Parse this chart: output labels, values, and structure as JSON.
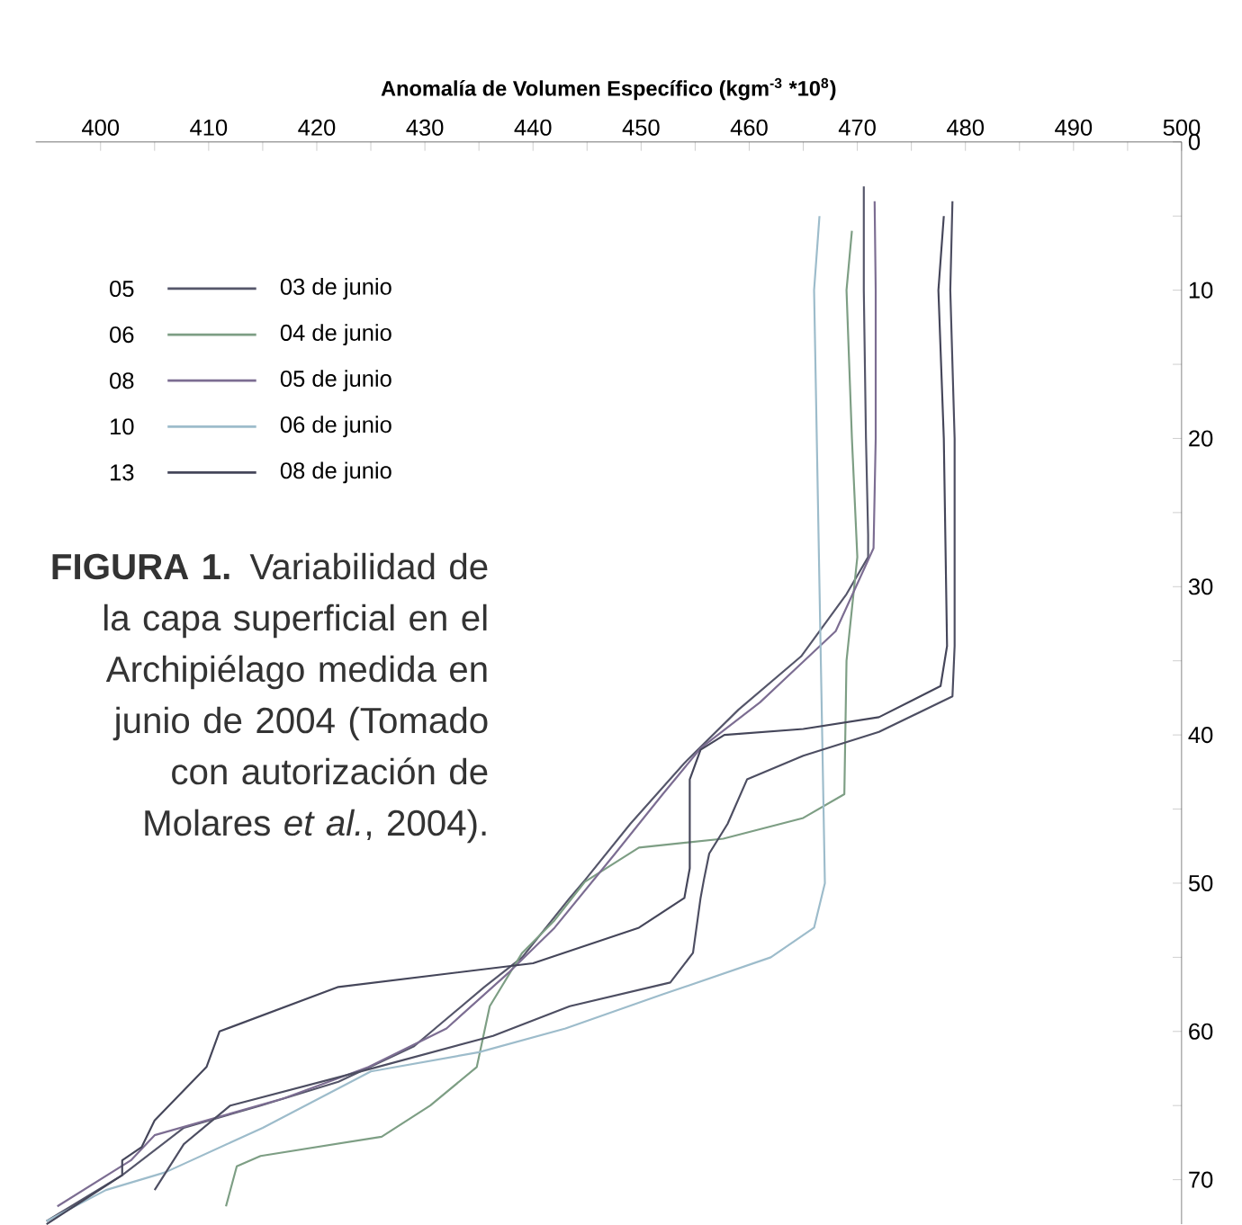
{
  "chart_data": {
    "type": "line",
    "xlabel": "Anomalía de Volumen Específico (kgm$^{-3}$ *10$^{8}$)",
    "xlim": [
      394,
      500
    ],
    "ylim": [
      73,
      0
    ],
    "xticks": [
      400,
      {
        "value": 405,
        "label": null
      },
      410,
      {
        "value": 415,
        "label": null
      },
      420,
      {
        "value": 425,
        "label": null
      },
      430,
      {
        "value": 435,
        "label": null
      },
      440,
      {
        "value": 445,
        "label": null
      },
      450,
      {
        "value": 455,
        "label": null
      },
      460,
      {
        "value": 465,
        "label": null
      },
      470,
      {
        "value": 475,
        "label": null
      },
      480,
      {
        "value": 485,
        "label": null
      },
      490,
      {
        "value": 495,
        "label": null
      },
      500
    ],
    "yticks": [
      0,
      {
        "value": 5,
        "label": null
      },
      10,
      {
        "value": 15,
        "label": null
      },
      20,
      {
        "value": 25,
        "label": null
      },
      30,
      {
        "value": 35,
        "label": null
      },
      40,
      {
        "value": 45,
        "label": null
      },
      50,
      {
        "value": 55,
        "label": null
      },
      60,
      {
        "value": 65,
        "label": null
      },
      70
    ],
    "legend": "top left",
    "line_style": "solid",
    "series": [
      {
        "name": "03 de junio",
        "color": "#55566a",
        "x": [
          470.6,
          470.6,
          470.8,
          471,
          471,
          469,
          464.8,
          459,
          454,
          449,
          444.8,
          443.4,
          439,
          435.5,
          429,
          422,
          414.8,
          407.7,
          402,
          395
        ],
        "values": [
          3,
          10,
          20,
          26.5,
          28,
          30.5,
          34.7,
          38.3,
          41.9,
          46,
          49.8,
          51,
          55,
          57,
          61,
          63.4,
          65,
          66.5,
          69.7,
          72.8
        ]
      },
      {
        "name": "04 de junio",
        "color": "#7d9e84",
        "x": [
          469.5,
          469,
          469.5,
          470,
          469,
          468.8,
          465,
          457.6,
          449.8,
          444.8,
          442,
          439,
          436,
          434.8,
          430.5,
          426,
          414.8,
          412.6,
          411.6
        ],
        "values": [
          6,
          10,
          20,
          28,
          35,
          44,
          45.6,
          47,
          47.6,
          49.9,
          52.5,
          54.7,
          58.3,
          62.4,
          65,
          67.1,
          68.4,
          69.1,
          71.8
        ]
      },
      {
        "name": "05 de junio",
        "color": "#7c6d92",
        "x": [
          471.6,
          471.7,
          471.7,
          471.5,
          468,
          461,
          455.5,
          452,
          447.6,
          442,
          437.8,
          432,
          424.8,
          417,
          405,
          402.8,
          396
        ],
        "values": [
          4,
          10,
          20,
          27.4,
          33,
          37.8,
          40.9,
          44,
          48,
          53,
          56,
          59.8,
          62.4,
          64.5,
          67,
          68.7,
          71.8
        ]
      },
      {
        "name": "06 de junio",
        "color": "#9dbccb",
        "x": [
          466.5,
          466,
          466.5,
          467,
          466,
          462,
          452,
          443,
          435,
          425,
          415,
          406,
          400.5,
          395
        ],
        "values": [
          5,
          10,
          30,
          50,
          53,
          55,
          57.5,
          59.8,
          61.4,
          62.7,
          66.5,
          69.5,
          70.7,
          72.8
        ]
      },
      {
        "name": "08 de junio",
        "color": "#45465a",
        "x": [
          478,
          477.5,
          478,
          478.3,
          477.7,
          472,
          465,
          457.7,
          455.5,
          454.5,
          454.5,
          454,
          449.8,
          440,
          422,
          411,
          409.8,
          405,
          403.8,
          402,
          402,
          395
        ],
        "values": [
          5,
          10,
          20,
          34,
          36.7,
          38.8,
          39.6,
          40,
          41,
          43,
          49,
          51,
          53,
          55.4,
          57,
          60,
          62.4,
          66,
          67.8,
          68.7,
          69.7,
          73
        ]
      },
      {
        "color": "#4d4e62",
        "x": [
          478.8,
          478.6,
          479,
          479,
          478.8,
          472,
          465,
          459.8,
          458,
          456.3,
          455.8,
          455.5,
          454.8,
          452.7,
          443.4,
          436.3,
          425.6,
          412,
          407.7,
          405
        ],
        "values": [
          4,
          10,
          20,
          34,
          37.4,
          39.8,
          41.4,
          43,
          46,
          48,
          49.8,
          51,
          54.7,
          56.7,
          58.3,
          60.3,
          62.4,
          65,
          67.6,
          70.7
        ]
      }
    ],
    "annotations": [
      "05",
      "06",
      "08",
      "10",
      "13",
      "**FIGURA 1.** Variabilidad de la capa superficial en el Archipiélago medida en junio de 2004 (Tomado con autorización de Molares *et al.*, 2004)."
    ]
  }
}
